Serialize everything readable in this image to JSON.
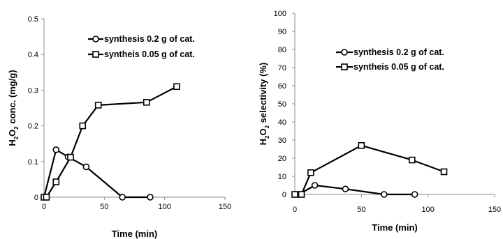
{
  "chart_data": [
    {
      "type": "line",
      "xlabel": "Time (min)",
      "ylabel": {
        "prefix": "H",
        "sub1": "2",
        "mid": "O",
        "sub2": "2",
        "rest": " conc. (mg/g)"
      },
      "xlim": [
        0,
        150
      ],
      "ylim": [
        0,
        0.5
      ],
      "xticks": [
        "0",
        "50",
        "100",
        "150"
      ],
      "yticks": [
        "0",
        "0.1",
        "0.2",
        "0.3",
        "0.4",
        "0.5"
      ],
      "grid": false,
      "legend_position": "top-right",
      "series": [
        {
          "name": "synthesis 0.2 g of cat.",
          "marker": "circle",
          "x": [
            0,
            10,
            20,
            35,
            65,
            88
          ],
          "y": [
            0,
            0.133,
            0.113,
            0.085,
            0,
            0
          ]
        },
        {
          "name": "syntheis 0.05 g of cat.",
          "marker": "square",
          "x": [
            0,
            2,
            10,
            22,
            32,
            45,
            85,
            110
          ],
          "y": [
            0,
            0,
            0.043,
            0.112,
            0.2,
            0.258,
            0.266,
            0.31
          ]
        }
      ]
    },
    {
      "type": "line",
      "xlabel": "Time (min)",
      "ylabel": {
        "prefix": "H",
        "sub1": "2",
        "mid": "O",
        "sub2": "2",
        "rest": " selectivity (%)"
      },
      "xlim": [
        0,
        150
      ],
      "ylim": [
        0,
        100
      ],
      "xticks": [
        "0",
        "50",
        "100",
        "150"
      ],
      "yticks": [
        "0",
        "10",
        "20",
        "30",
        "40",
        "50",
        "60",
        "70",
        "80",
        "90",
        "100"
      ],
      "grid": false,
      "legend_position": "center-right",
      "series": [
        {
          "name": "synthesis 0.2 g of cat.",
          "marker": "circle",
          "x": [
            0,
            3,
            15,
            38,
            67,
            90
          ],
          "y": [
            0,
            0,
            5,
            3,
            0,
            0
          ]
        },
        {
          "name": "syntheis 0.05 g of cat.",
          "marker": "square",
          "x": [
            0,
            5,
            12,
            50,
            88,
            112
          ],
          "y": [
            0,
            0,
            12,
            27,
            19,
            12.5
          ]
        }
      ]
    }
  ]
}
